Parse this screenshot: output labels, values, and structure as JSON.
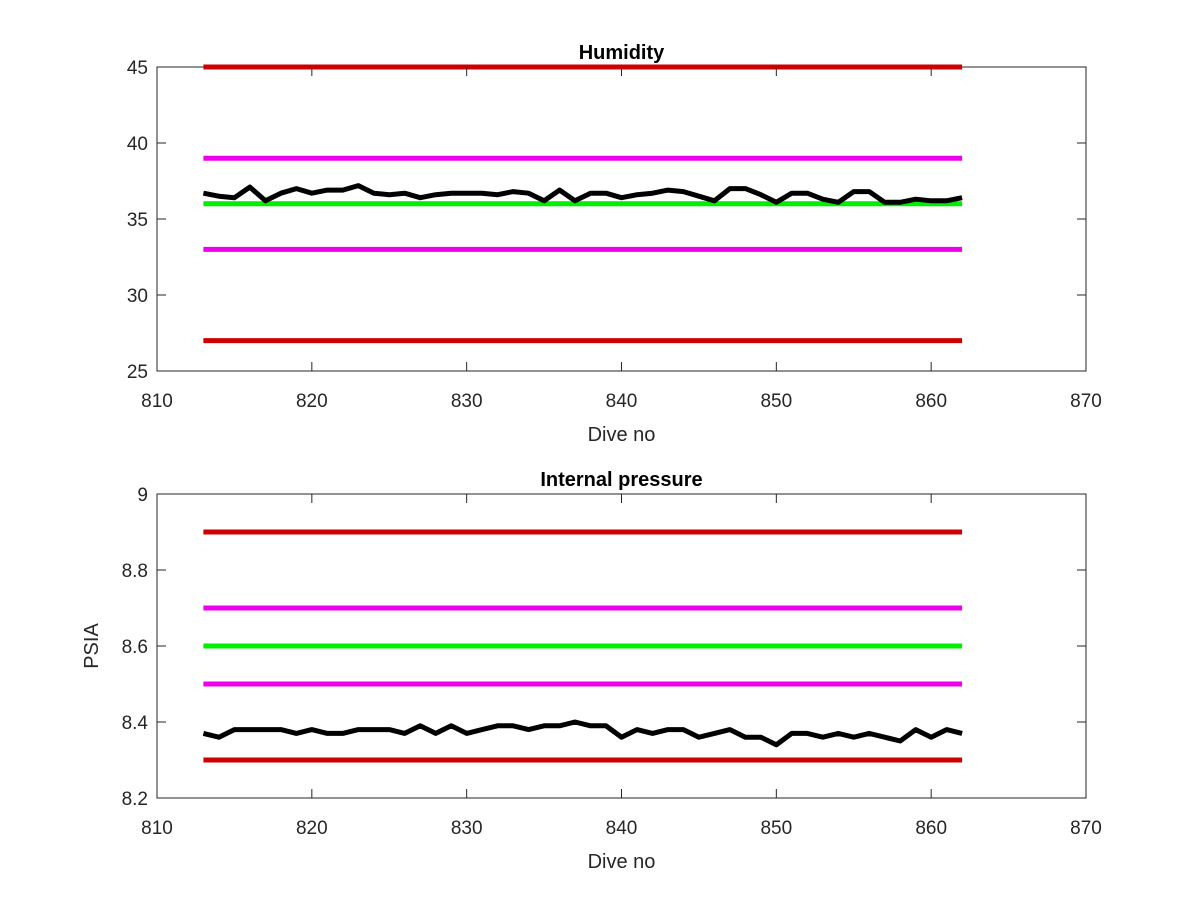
{
  "chart_data": [
    {
      "type": "line",
      "title": "Humidity",
      "xlabel": "Dive no",
      "ylabel": "",
      "xlim": [
        810,
        870
      ],
      "ylim": [
        25,
        45
      ],
      "xticks": [
        810,
        820,
        830,
        840,
        850,
        860,
        870
      ],
      "yticks": [
        25,
        30,
        35,
        40,
        45
      ],
      "grid": false,
      "series": [
        {
          "color": "#cc0000",
          "x": [
            813,
            862
          ],
          "y": [
            45,
            45
          ]
        },
        {
          "color": "#ee00ee",
          "x": [
            813,
            862
          ],
          "y": [
            39,
            39
          ]
        },
        {
          "color": "#00ee00",
          "x": [
            813,
            862
          ],
          "y": [
            36,
            36
          ]
        },
        {
          "color": "#ee00ee",
          "x": [
            813,
            862
          ],
          "y": [
            33,
            33
          ]
        },
        {
          "color": "#cc0000",
          "x": [
            813,
            862
          ],
          "y": [
            27,
            27
          ]
        },
        {
          "color": "#000000",
          "x": [
            813,
            814,
            815,
            816,
            817,
            818,
            819,
            820,
            821,
            822,
            823,
            824,
            825,
            826,
            827,
            828,
            829,
            830,
            831,
            832,
            833,
            834,
            835,
            836,
            837,
            838,
            839,
            840,
            841,
            842,
            843,
            844,
            845,
            846,
            847,
            848,
            849,
            850,
            851,
            852,
            853,
            854,
            855,
            856,
            857,
            858,
            859,
            860,
            861,
            862
          ],
          "y": [
            36.7,
            36.5,
            36.4,
            37.1,
            36.2,
            36.7,
            37.0,
            36.7,
            36.9,
            36.9,
            37.2,
            36.7,
            36.6,
            36.7,
            36.4,
            36.6,
            36.7,
            36.7,
            36.7,
            36.6,
            36.8,
            36.7,
            36.2,
            36.9,
            36.2,
            36.7,
            36.7,
            36.4,
            36.6,
            36.7,
            36.9,
            36.8,
            36.5,
            36.2,
            37.0,
            37.0,
            36.6,
            36.1,
            36.7,
            36.7,
            36.3,
            36.1,
            36.8,
            36.8,
            36.1,
            36.1,
            36.3,
            36.2,
            36.2,
            36.4
          ]
        }
      ]
    },
    {
      "type": "line",
      "title": "Internal pressure",
      "xlabel": "Dive no",
      "ylabel": "PSIA",
      "xlim": [
        810,
        870
      ],
      "ylim": [
        8.2,
        9
      ],
      "xticks": [
        810,
        820,
        830,
        840,
        850,
        860,
        870
      ],
      "yticks": [
        8.2,
        8.4,
        8.6,
        8.8,
        9
      ],
      "grid": false,
      "series": [
        {
          "color": "#cc0000",
          "x": [
            813,
            862
          ],
          "y": [
            8.9,
            8.9
          ]
        },
        {
          "color": "#ee00ee",
          "x": [
            813,
            862
          ],
          "y": [
            8.7,
            8.7
          ]
        },
        {
          "color": "#00ee00",
          "x": [
            813,
            862
          ],
          "y": [
            8.6,
            8.6
          ]
        },
        {
          "color": "#ee00ee",
          "x": [
            813,
            862
          ],
          "y": [
            8.5,
            8.5
          ]
        },
        {
          "color": "#cc0000",
          "x": [
            813,
            862
          ],
          "y": [
            8.3,
            8.3
          ]
        },
        {
          "color": "#000000",
          "x": [
            813,
            814,
            815,
            816,
            817,
            818,
            819,
            820,
            821,
            822,
            823,
            824,
            825,
            826,
            827,
            828,
            829,
            830,
            831,
            832,
            833,
            834,
            835,
            836,
            837,
            838,
            839,
            840,
            841,
            842,
            843,
            844,
            845,
            846,
            847,
            848,
            849,
            850,
            851,
            852,
            853,
            854,
            855,
            856,
            857,
            858,
            859,
            860,
            861,
            862
          ],
          "y": [
            8.37,
            8.36,
            8.38,
            8.38,
            8.38,
            8.38,
            8.37,
            8.38,
            8.37,
            8.37,
            8.38,
            8.38,
            8.38,
            8.37,
            8.39,
            8.37,
            8.39,
            8.37,
            8.38,
            8.39,
            8.39,
            8.38,
            8.39,
            8.39,
            8.4,
            8.39,
            8.39,
            8.36,
            8.38,
            8.37,
            8.38,
            8.38,
            8.36,
            8.37,
            8.38,
            8.36,
            8.36,
            8.34,
            8.37,
            8.37,
            8.36,
            8.37,
            8.36,
            8.37,
            8.36,
            8.35,
            8.38,
            8.36,
            8.38,
            8.37
          ]
        }
      ]
    }
  ]
}
